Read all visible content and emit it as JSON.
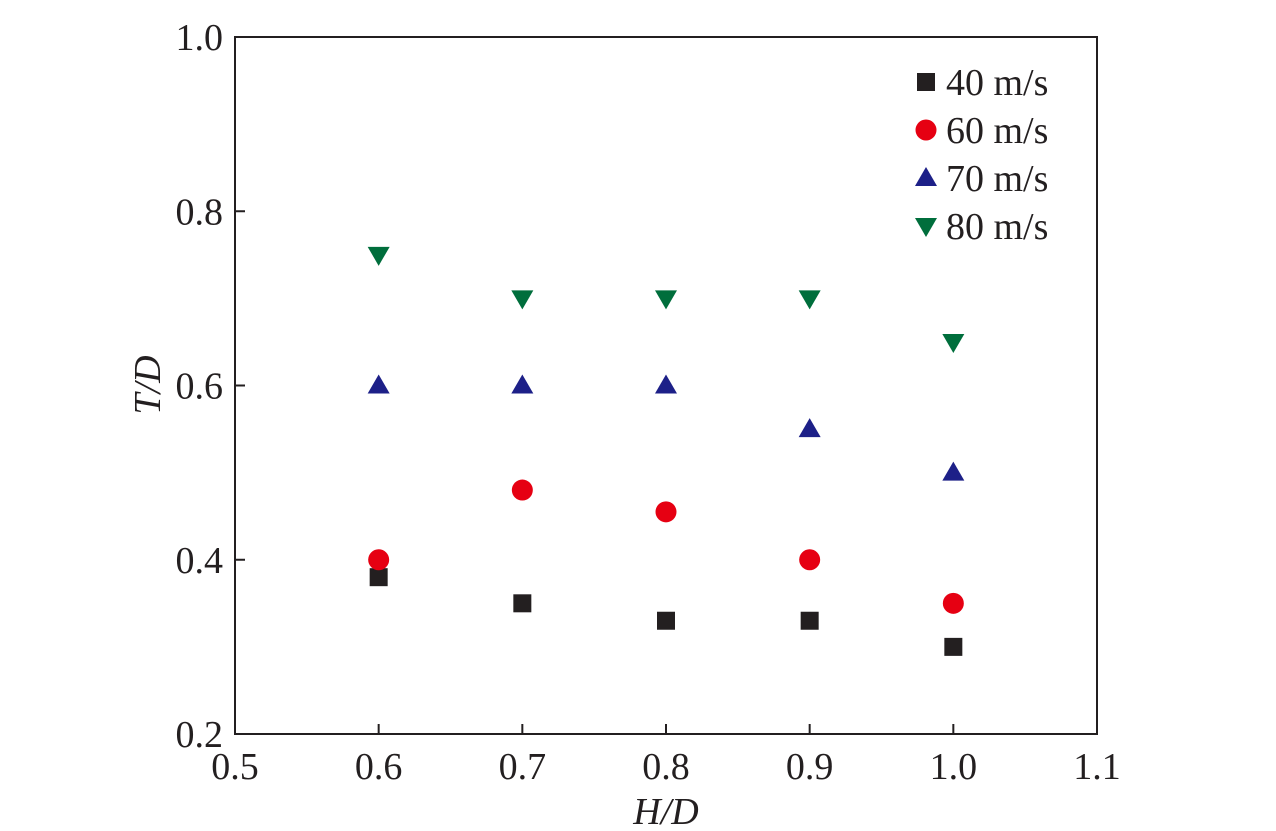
{
  "chart_data": {
    "type": "scatter",
    "title": "",
    "xlabel": "H/D",
    "ylabel": "T/D",
    "xlim": [
      0.5,
      1.1
    ],
    "ylim": [
      0.2,
      1.0
    ],
    "xticks": [
      "0.5",
      "0.6",
      "0.7",
      "0.8",
      "0.9",
      "1.0",
      "1.1"
    ],
    "yticks": [
      "0.2",
      "0.4",
      "0.6",
      "0.8",
      "1.0"
    ],
    "grid": false,
    "legend_position": "top-right",
    "x": [
      0.6,
      0.7,
      0.8,
      0.9,
      1.0
    ],
    "series": [
      {
        "name": "40 m/s",
        "marker": "square",
        "color": "#231f20",
        "values": [
          0.38,
          0.35,
          0.33,
          0.33,
          0.3
        ]
      },
      {
        "name": "60 m/s",
        "marker": "circle",
        "color": "#e60012",
        "values": [
          0.4,
          0.48,
          0.455,
          0.4,
          0.35
        ]
      },
      {
        "name": "70 m/s",
        "marker": "triangle-up",
        "color": "#1d2088",
        "values": [
          0.6,
          0.6,
          0.6,
          0.55,
          0.5
        ]
      },
      {
        "name": "80 m/s",
        "marker": "triangle-down",
        "color": "#006e3c",
        "values": [
          0.75,
          0.7,
          0.7,
          0.7,
          0.65
        ]
      }
    ]
  }
}
